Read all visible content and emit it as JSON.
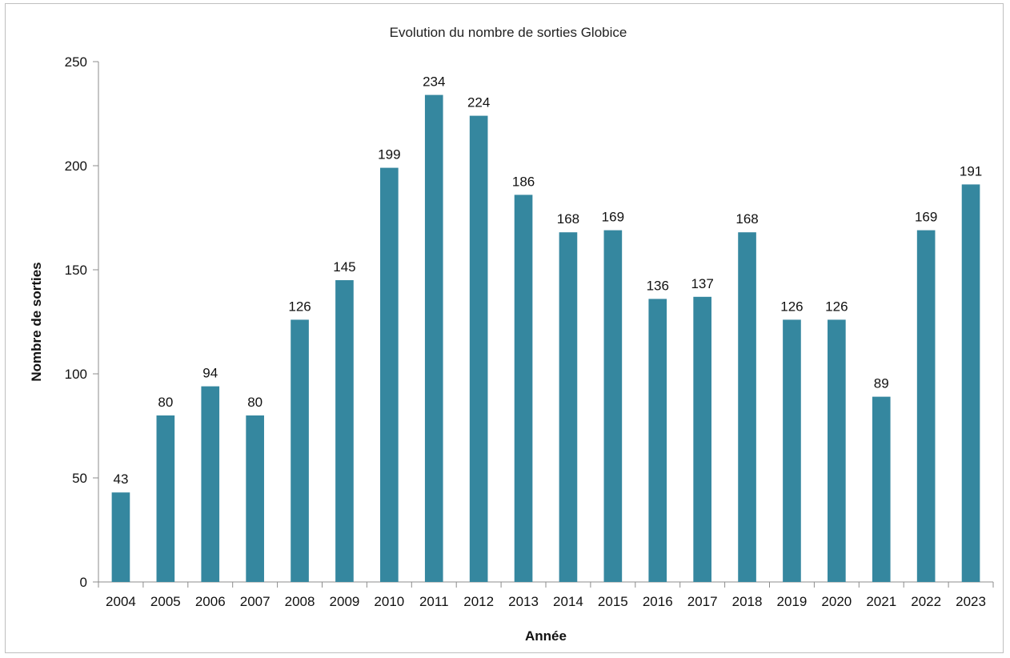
{
  "chart_data": {
    "type": "bar",
    "title": "Evolution du nombre de sorties Globice",
    "xlabel": "Année",
    "ylabel": "Nombre de sorties",
    "categories": [
      "2004",
      "2005",
      "2006",
      "2007",
      "2008",
      "2009",
      "2010",
      "2011",
      "2012",
      "2013",
      "2014",
      "2015",
      "2016",
      "2017",
      "2018",
      "2019",
      "2020",
      "2021",
      "2022",
      "2023"
    ],
    "values": [
      43,
      80,
      94,
      80,
      126,
      145,
      199,
      234,
      224,
      186,
      168,
      169,
      136,
      137,
      168,
      126,
      126,
      89,
      169,
      191
    ],
    "ylim": [
      0,
      250
    ],
    "yticks": [
      0,
      50,
      100,
      150,
      200,
      250
    ],
    "bar_color": "#35879f",
    "grid": false,
    "legend": "none",
    "data_labels": true
  }
}
